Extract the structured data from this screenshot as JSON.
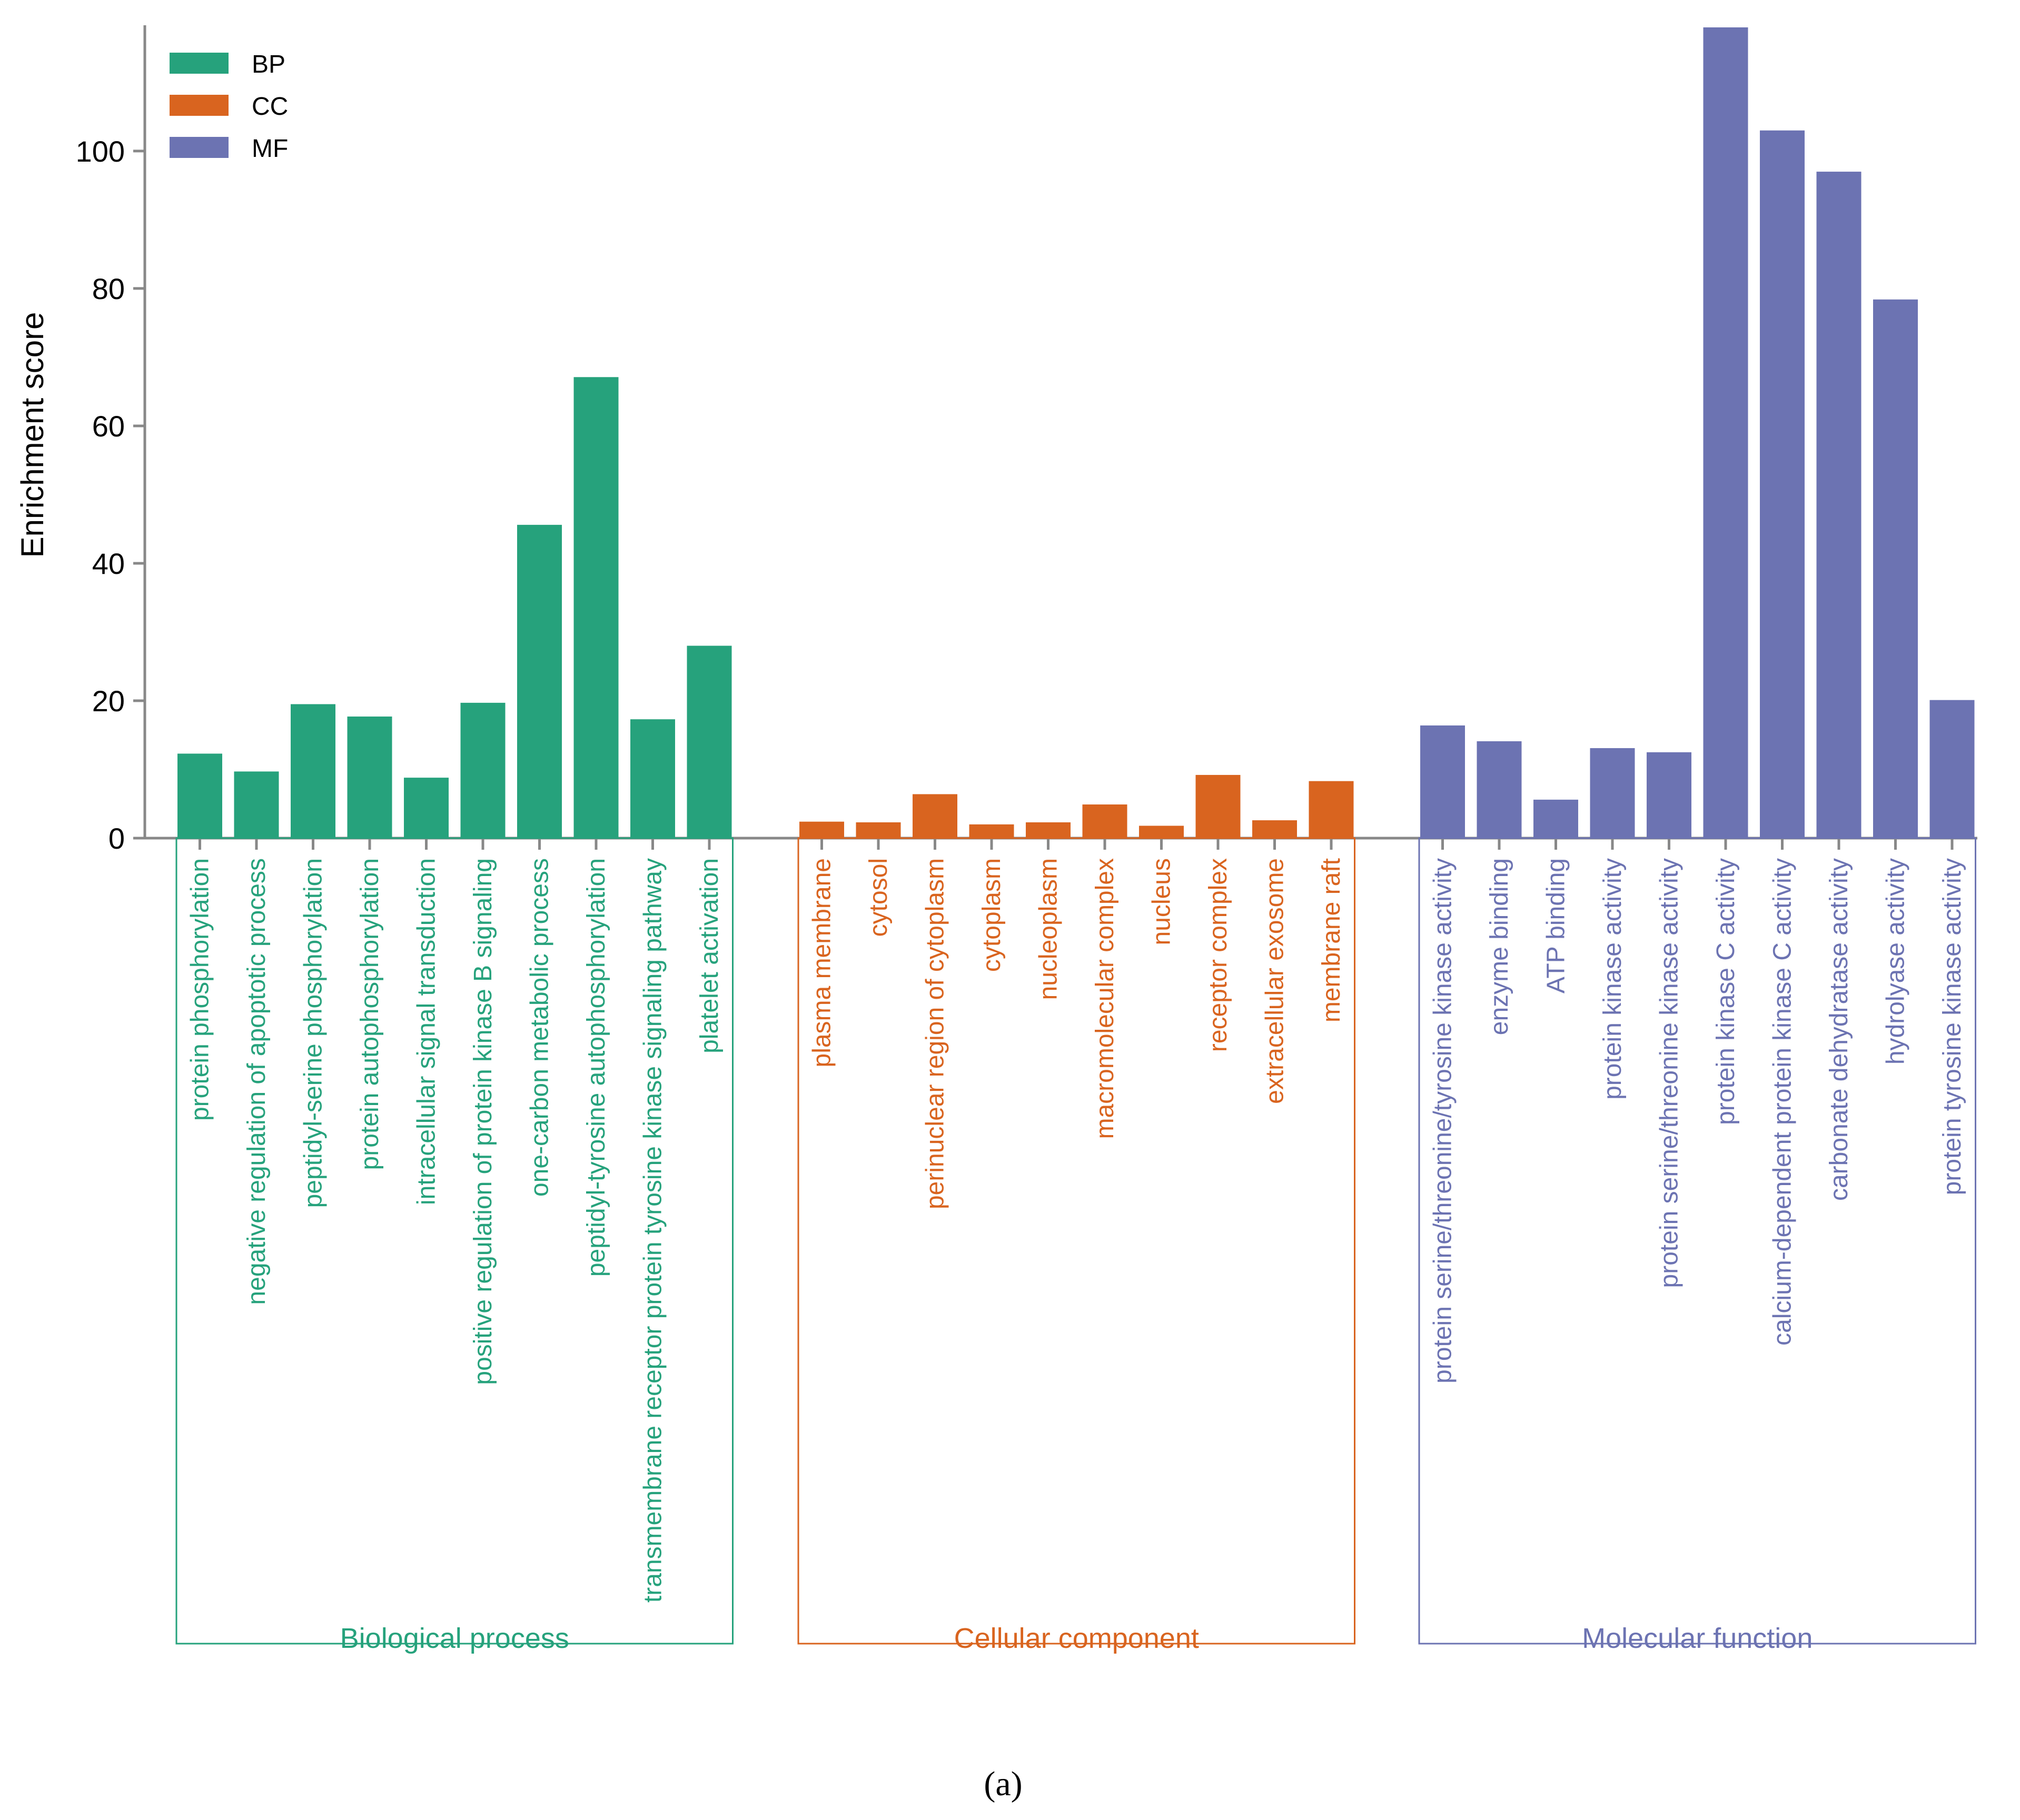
{
  "caption": "(a)",
  "chart_data": {
    "type": "bar",
    "ylabel": "Enrichment score",
    "ylim": [
      0,
      118
    ],
    "yticks": [
      0,
      20,
      40,
      60,
      80,
      100
    ],
    "grid": false,
    "legend_position": "top-left",
    "legend": [
      {
        "label": "BP",
        "color": "#26a27c"
      },
      {
        "label": "CC",
        "color": "#d9641f"
      },
      {
        "label": "MF",
        "color": "#6c73b2"
      }
    ],
    "groups": [
      {
        "key": "BP",
        "name": "Biological process",
        "color": "#26a27c",
        "categories": [
          "protein phosphorylation",
          "negative regulation of apoptotic process",
          "peptidyl-serine phosphorylation",
          "protein autophosphorylation",
          "intracellular signal transduction",
          "positive regulation of protein kinase B signaling",
          "one-carbon metabolic process",
          "peptidyl-tyrosine autophosphorylation",
          "transmembrane receptor protein tyrosine kinase signaling pathway",
          "platelet activation"
        ],
        "values": [
          12.3,
          9.7,
          19.5,
          17.7,
          8.8,
          19.7,
          45.6,
          67.1,
          17.3,
          28.0
        ]
      },
      {
        "key": "CC",
        "name": "Cellular component",
        "color": "#d9641f",
        "categories": [
          "plasma membrane",
          "cytosol",
          "perinuclear region of cytoplasm",
          "cytoplasm",
          "nucleoplasm",
          "macromolecular complex",
          "nucleus",
          "receptor complex",
          "extracellular exosome",
          "membrane raft"
        ],
        "values": [
          2.4,
          2.3,
          6.4,
          2.0,
          2.3,
          4.9,
          1.8,
          9.2,
          2.6,
          8.3
        ]
      },
      {
        "key": "MF",
        "name": "Molecular function",
        "color": "#6c73b2",
        "categories": [
          "protein serine/threonine/tyrosine kinase activity",
          "enzyme binding",
          "ATP binding",
          "protein kinase activity",
          "protein serine/threonine kinase activity",
          "protein kinase C activity",
          "calcium-dependent protein kinase C activity",
          "carbonate dehydratase activity",
          "hydrolyase activity",
          "protein tyrosine kinase activity"
        ],
        "values": [
          16.4,
          14.1,
          5.6,
          13.1,
          12.5,
          118,
          103,
          97,
          78.4,
          20.1
        ]
      }
    ]
  }
}
